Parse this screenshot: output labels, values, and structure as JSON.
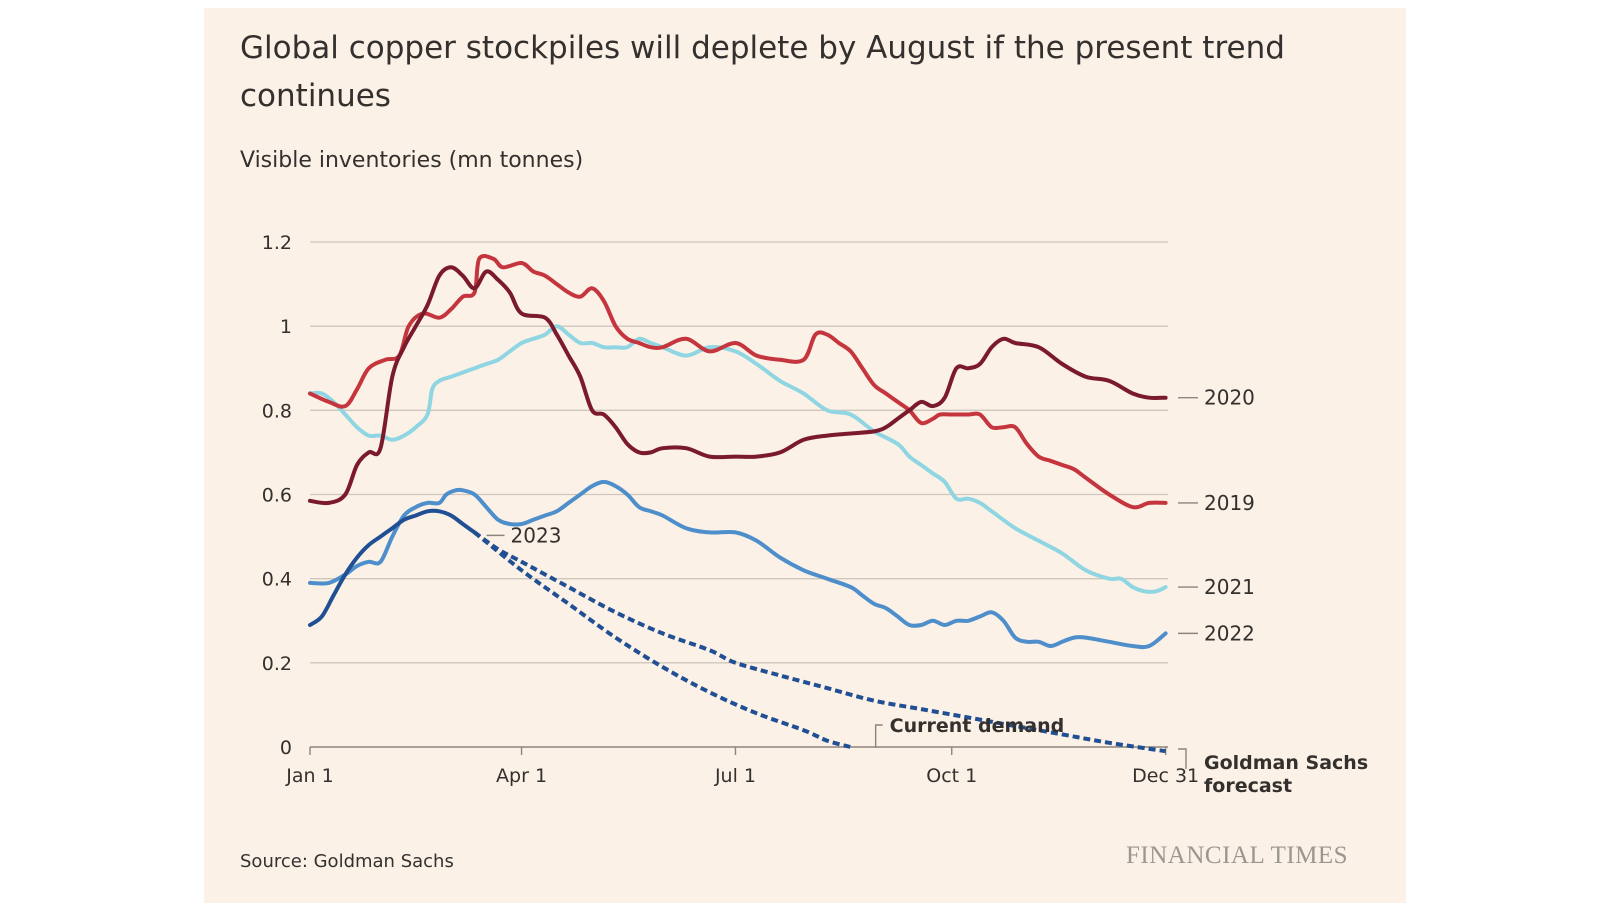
{
  "title": "Global copper stockpiles will deplete by August if the present trend continues",
  "subtitle": "Visible inventories (mn tonnes)",
  "source": "Source: Goldman Sachs",
  "brand": "FINANCIAL TIMES",
  "chart_data": {
    "type": "line",
    "title": "Global copper stockpiles will deplete by August if the present trend continues",
    "ylabel": "Visible inventories (mn tonnes)",
    "xlabel": "",
    "ylim": [
      0,
      1.2
    ],
    "xlim": [
      0,
      365
    ],
    "x_ticks": [
      {
        "x": 0,
        "label": "Jan 1"
      },
      {
        "x": 90,
        "label": "Apr 1"
      },
      {
        "x": 181,
        "label": "Jul 1"
      },
      {
        "x": 273,
        "label": "Oct 1"
      },
      {
        "x": 364,
        "label": "Dec 31"
      }
    ],
    "y_ticks": [
      {
        "y": 0,
        "label": "0"
      },
      {
        "y": 0.2,
        "label": "0.2"
      },
      {
        "y": 0.4,
        "label": "0.4"
      },
      {
        "y": 0.6,
        "label": "0.6"
      },
      {
        "y": 0.8,
        "label": "0.8"
      },
      {
        "y": 1,
        "label": "1"
      },
      {
        "y": 1.2,
        "label": "1.2"
      }
    ],
    "grid": true,
    "series": [
      {
        "name": "2020",
        "color": "#7a1a2c",
        "dashed": false,
        "x": [
          0,
          8,
          15,
          20,
          25,
          30,
          35,
          40,
          45,
          50,
          55,
          60,
          65,
          70,
          75,
          80,
          85,
          90,
          100,
          105,
          110,
          115,
          120,
          125,
          130,
          135,
          140,
          145,
          150,
          160,
          170,
          181,
          190,
          200,
          210,
          220,
          230,
          240,
          245,
          250,
          255,
          260,
          265,
          270,
          275,
          280,
          285,
          290,
          295,
          300,
          310,
          320,
          330,
          340,
          350,
          357,
          364
        ],
        "y": [
          0.585,
          0.58,
          0.6,
          0.67,
          0.7,
          0.71,
          0.88,
          0.95,
          1.0,
          1.05,
          1.12,
          1.14,
          1.12,
          1.09,
          1.13,
          1.11,
          1.08,
          1.03,
          1.02,
          0.98,
          0.93,
          0.88,
          0.8,
          0.79,
          0.76,
          0.72,
          0.7,
          0.7,
          0.71,
          0.71,
          0.69,
          0.69,
          0.69,
          0.7,
          0.73,
          0.74,
          0.745,
          0.75,
          0.76,
          0.78,
          0.8,
          0.82,
          0.81,
          0.83,
          0.9,
          0.9,
          0.91,
          0.95,
          0.97,
          0.96,
          0.95,
          0.91,
          0.88,
          0.87,
          0.84,
          0.83,
          0.83
        ]
      },
      {
        "name": "2019",
        "color": "#c5353d",
        "dashed": false,
        "x": [
          0,
          8,
          15,
          20,
          25,
          32,
          38,
          42,
          48,
          55,
          60,
          65,
          70,
          72,
          78,
          82,
          90,
          95,
          100,
          105,
          110,
          115,
          120,
          125,
          130,
          135,
          140,
          145,
          150,
          160,
          170,
          181,
          190,
          200,
          210,
          215,
          220,
          225,
          230,
          235,
          240,
          245,
          250,
          255,
          260,
          265,
          268,
          273,
          280,
          285,
          290,
          295,
          300,
          305,
          310,
          315,
          320,
          325,
          330,
          340,
          350,
          357,
          364
        ],
        "y": [
          0.84,
          0.82,
          0.81,
          0.85,
          0.9,
          0.92,
          0.93,
          1.0,
          1.03,
          1.02,
          1.04,
          1.07,
          1.08,
          1.16,
          1.16,
          1.14,
          1.15,
          1.13,
          1.12,
          1.1,
          1.08,
          1.07,
          1.09,
          1.06,
          1.0,
          0.97,
          0.96,
          0.95,
          0.95,
          0.97,
          0.94,
          0.96,
          0.93,
          0.92,
          0.92,
          0.98,
          0.98,
          0.96,
          0.94,
          0.9,
          0.86,
          0.84,
          0.82,
          0.8,
          0.77,
          0.78,
          0.79,
          0.79,
          0.79,
          0.79,
          0.76,
          0.76,
          0.76,
          0.72,
          0.69,
          0.68,
          0.67,
          0.66,
          0.64,
          0.6,
          0.57,
          0.58,
          0.58
        ]
      },
      {
        "name": "2021",
        "color": "#8fd6e2",
        "dashed": false,
        "x": [
          0,
          5,
          10,
          15,
          20,
          25,
          30,
          35,
          40,
          45,
          50,
          52,
          55,
          60,
          65,
          70,
          75,
          80,
          85,
          90,
          95,
          100,
          105,
          110,
          115,
          120,
          125,
          130,
          135,
          140,
          145,
          150,
          160,
          170,
          181,
          190,
          200,
          210,
          220,
          230,
          240,
          250,
          255,
          260,
          265,
          270,
          275,
          280,
          285,
          290,
          300,
          310,
          320,
          330,
          340,
          345,
          350,
          355,
          360,
          364
        ],
        "y": [
          0.84,
          0.84,
          0.82,
          0.79,
          0.76,
          0.74,
          0.74,
          0.73,
          0.74,
          0.76,
          0.79,
          0.85,
          0.87,
          0.88,
          0.89,
          0.9,
          0.91,
          0.92,
          0.94,
          0.96,
          0.97,
          0.98,
          1.0,
          0.98,
          0.96,
          0.96,
          0.95,
          0.95,
          0.95,
          0.97,
          0.96,
          0.95,
          0.93,
          0.95,
          0.94,
          0.91,
          0.87,
          0.84,
          0.8,
          0.79,
          0.75,
          0.72,
          0.69,
          0.67,
          0.65,
          0.63,
          0.59,
          0.59,
          0.58,
          0.56,
          0.52,
          0.49,
          0.46,
          0.42,
          0.4,
          0.4,
          0.38,
          0.37,
          0.37,
          0.38
        ]
      },
      {
        "name": "2022",
        "color": "#4e8fcb",
        "dashed": false,
        "x": [
          0,
          8,
          15,
          20,
          25,
          30,
          35,
          40,
          45,
          50,
          55,
          58,
          62,
          65,
          70,
          75,
          80,
          85,
          90,
          95,
          100,
          105,
          110,
          115,
          120,
          125,
          130,
          135,
          140,
          145,
          150,
          160,
          170,
          181,
          190,
          200,
          210,
          220,
          230,
          235,
          240,
          245,
          250,
          255,
          260,
          265,
          270,
          275,
          280,
          285,
          290,
          295,
          300,
          305,
          310,
          315,
          320,
          325,
          330,
          340,
          350,
          357,
          364
        ],
        "y": [
          0.39,
          0.39,
          0.41,
          0.43,
          0.44,
          0.44,
          0.5,
          0.55,
          0.57,
          0.58,
          0.58,
          0.6,
          0.61,
          0.61,
          0.6,
          0.57,
          0.54,
          0.53,
          0.53,
          0.54,
          0.55,
          0.56,
          0.58,
          0.6,
          0.62,
          0.63,
          0.62,
          0.6,
          0.57,
          0.56,
          0.55,
          0.52,
          0.51,
          0.51,
          0.49,
          0.45,
          0.42,
          0.4,
          0.38,
          0.36,
          0.34,
          0.33,
          0.31,
          0.29,
          0.29,
          0.3,
          0.29,
          0.3,
          0.3,
          0.31,
          0.32,
          0.3,
          0.26,
          0.25,
          0.25,
          0.24,
          0.25,
          0.26,
          0.26,
          0.25,
          0.24,
          0.24,
          0.27
        ]
      },
      {
        "name": "2023",
        "color": "#214f93",
        "dashed": false,
        "x": [
          0,
          5,
          10,
          15,
          20,
          25,
          30,
          35,
          40,
          45,
          50,
          55,
          60,
          65,
          70
        ],
        "y": [
          0.29,
          0.31,
          0.36,
          0.41,
          0.45,
          0.48,
          0.5,
          0.52,
          0.54,
          0.55,
          0.56,
          0.56,
          0.55,
          0.53,
          0.51
        ]
      },
      {
        "name": "Current demand",
        "color": "#214f93",
        "dashed": true,
        "x": [
          70,
          90,
          110,
          130,
          150,
          170,
          190,
          210,
          220,
          230
        ],
        "y": [
          0.51,
          0.42,
          0.34,
          0.26,
          0.19,
          0.13,
          0.08,
          0.04,
          0.015,
          0.0
        ]
      },
      {
        "name": "Goldman Sachs forecast",
        "color": "#214f93",
        "dashed": true,
        "x": [
          70,
          80,
          90,
          110,
          130,
          150,
          170,
          181,
          200,
          220,
          240,
          260,
          280,
          300,
          320,
          340,
          364
        ],
        "y": [
          0.51,
          0.47,
          0.44,
          0.38,
          0.32,
          0.27,
          0.23,
          0.2,
          0.17,
          0.14,
          0.11,
          0.09,
          0.07,
          0.05,
          0.03,
          0.01,
          -0.01
        ]
      }
    ],
    "labels": [
      {
        "text": "2020",
        "series": "2020"
      },
      {
        "text": "2019",
        "series": "2019"
      },
      {
        "text": "2021",
        "series": "2021"
      },
      {
        "text": "2022",
        "series": "2022"
      },
      {
        "text": "2023",
        "series": "2023"
      },
      {
        "text": "Current demand",
        "series": "Current demand"
      },
      {
        "text_lines": [
          "Goldman Sachs",
          "forecast"
        ],
        "series": "Goldman Sachs forecast"
      }
    ]
  }
}
